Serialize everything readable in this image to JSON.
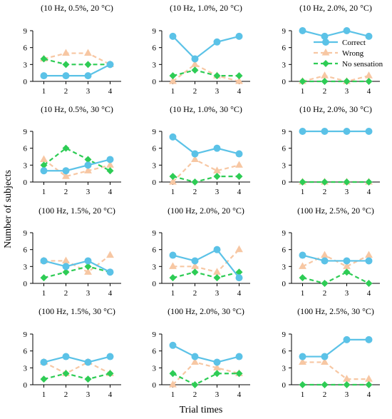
{
  "figure": {
    "ylabel": "Number of subjects",
    "xlabel": "Trial times"
  },
  "legend": {
    "placement": "inside-top-right of third panel",
    "entries": [
      "Correct",
      "Wrong",
      "No sensation"
    ]
  },
  "series_style": {
    "Correct": {
      "color": "#5bc2e7",
      "marker": "circle",
      "dash": "solid"
    },
    "Wrong": {
      "color": "#f7c7a3",
      "marker": "triangle",
      "dash": "dashed"
    },
    "No sensation": {
      "color": "#2ecc55",
      "marker": "diamond",
      "dash": "dashed"
    }
  },
  "chart_data": [
    {
      "type": "line",
      "title": "(10 Hz, 0.5%, 20  °C)",
      "x": [
        1,
        2,
        3,
        4
      ],
      "ylim": [
        0,
        9
      ],
      "yticks": [
        0,
        3,
        6,
        9
      ],
      "series": [
        {
          "name": "Correct",
          "values": [
            1,
            1,
            1,
            3
          ]
        },
        {
          "name": "Wrong",
          "values": [
            4,
            5,
            5,
            3
          ]
        },
        {
          "name": "No sensation",
          "values": [
            4,
            3,
            3,
            3
          ]
        }
      ]
    },
    {
      "type": "line",
      "title": "(10 Hz, 1.0%, 20  °C)",
      "x": [
        1,
        2,
        3,
        4
      ],
      "ylim": [
        0,
        9
      ],
      "yticks": [
        0,
        3,
        6,
        9
      ],
      "series": [
        {
          "name": "Correct",
          "values": [
            8,
            4,
            7,
            8
          ]
        },
        {
          "name": "Wrong",
          "values": [
            0,
            3,
            1,
            0
          ]
        },
        {
          "name": "No sensation",
          "values": [
            1,
            2,
            1,
            1
          ]
        }
      ]
    },
    {
      "type": "line",
      "title": "(10 Hz, 2.0%, 20  °C)",
      "x": [
        1,
        2,
        3,
        4
      ],
      "ylim": [
        0,
        9
      ],
      "yticks": [
        0,
        3,
        6,
        9
      ],
      "series": [
        {
          "name": "Correct",
          "values": [
            9,
            8,
            9,
            8
          ]
        },
        {
          "name": "Wrong",
          "values": [
            0,
            1,
            0,
            1
          ]
        },
        {
          "name": "No sensation",
          "values": [
            0,
            0,
            0,
            0
          ]
        }
      ]
    },
    {
      "type": "line",
      "title": "(10 Hz, 0.5%, 30  °C)",
      "x": [
        1,
        2,
        3,
        4
      ],
      "ylim": [
        0,
        9
      ],
      "yticks": [
        0,
        3,
        6,
        9
      ],
      "series": [
        {
          "name": "Correct",
          "values": [
            2,
            2,
            3,
            4
          ]
        },
        {
          "name": "Wrong",
          "values": [
            4,
            1,
            2,
            3
          ]
        },
        {
          "name": "No sensation",
          "values": [
            3,
            6,
            4,
            2
          ]
        }
      ]
    },
    {
      "type": "line",
      "title": "(10 Hz, 1.0%, 30  °C)",
      "x": [
        1,
        2,
        3,
        4
      ],
      "ylim": [
        0,
        9
      ],
      "yticks": [
        0,
        3,
        6,
        9
      ],
      "series": [
        {
          "name": "Correct",
          "values": [
            8,
            5,
            6,
            5
          ]
        },
        {
          "name": "Wrong",
          "values": [
            0,
            4,
            2,
            3
          ]
        },
        {
          "name": "No sensation",
          "values": [
            1,
            0,
            1,
            1
          ]
        }
      ]
    },
    {
      "type": "line",
      "title": "(10 Hz, 2.0%, 30  °C)",
      "x": [
        1,
        2,
        3,
        4
      ],
      "ylim": [
        0,
        9
      ],
      "yticks": [
        0,
        3,
        6,
        9
      ],
      "series": [
        {
          "name": "Correct",
          "values": [
            9,
            9,
            9,
            9
          ]
        },
        {
          "name": "Wrong",
          "values": [
            0,
            0,
            0,
            0
          ]
        },
        {
          "name": "No sensation",
          "values": [
            0,
            0,
            0,
            0
          ]
        }
      ]
    },
    {
      "type": "line",
      "title": "(100 Hz, 1.5%, 20  °C)",
      "x": [
        1,
        2,
        3,
        4
      ],
      "ylim": [
        0,
        9
      ],
      "yticks": [
        0,
        3,
        6,
        9
      ],
      "series": [
        {
          "name": "Correct",
          "values": [
            4,
            3,
            4,
            2
          ]
        },
        {
          "name": "Wrong",
          "values": [
            4,
            4,
            2,
            5
          ]
        },
        {
          "name": "No sensation",
          "values": [
            1,
            2,
            3,
            2
          ]
        }
      ]
    },
    {
      "type": "line",
      "title": "(100 Hz, 2.0%, 20  °C)",
      "x": [
        1,
        2,
        3,
        4
      ],
      "ylim": [
        0,
        9
      ],
      "yticks": [
        0,
        3,
        6,
        9
      ],
      "series": [
        {
          "name": "Correct",
          "values": [
            5,
            4,
            6,
            1
          ]
        },
        {
          "name": "Wrong",
          "values": [
            3,
            3,
            2,
            6
          ]
        },
        {
          "name": "No sensation",
          "values": [
            1,
            2,
            1,
            2
          ]
        }
      ]
    },
    {
      "type": "line",
      "title": "(100 Hz, 2.5%, 20  °C)",
      "x": [
        1,
        2,
        3,
        4
      ],
      "ylim": [
        0,
        9
      ],
      "yticks": [
        0,
        3,
        6,
        9
      ],
      "series": [
        {
          "name": "Correct",
          "values": [
            5,
            4,
            4,
            4
          ]
        },
        {
          "name": "Wrong",
          "values": [
            3,
            5,
            3,
            5
          ]
        },
        {
          "name": "No sensation",
          "values": [
            1,
            0,
            2,
            0
          ]
        }
      ]
    },
    {
      "type": "line",
      "title": "(100 Hz, 1.5%, 30  °C)",
      "x": [
        1,
        2,
        3,
        4
      ],
      "ylim": [
        0,
        9
      ],
      "yticks": [
        0,
        3,
        6,
        9
      ],
      "series": [
        {
          "name": "Correct",
          "values": [
            4,
            5,
            4,
            5
          ]
        },
        {
          "name": "Wrong",
          "values": [
            4,
            2,
            4,
            2
          ]
        },
        {
          "name": "No sensation",
          "values": [
            1,
            2,
            1,
            2
          ]
        }
      ]
    },
    {
      "type": "line",
      "title": "(100 Hz, 2.0%, 30  °C)",
      "x": [
        1,
        2,
        3,
        4
      ],
      "ylim": [
        0,
        9
      ],
      "yticks": [
        0,
        3,
        6,
        9
      ],
      "series": [
        {
          "name": "Correct",
          "values": [
            7,
            5,
            4,
            5
          ]
        },
        {
          "name": "Wrong",
          "values": [
            0,
            4,
            3,
            2
          ]
        },
        {
          "name": "No sensation",
          "values": [
            2,
            0,
            2,
            2
          ]
        }
      ]
    },
    {
      "type": "line",
      "title": "(100 Hz, 2.5%, 30  °C)",
      "x": [
        1,
        2,
        3,
        4
      ],
      "ylim": [
        0,
        9
      ],
      "yticks": [
        0,
        3,
        6,
        9
      ],
      "series": [
        {
          "name": "Correct",
          "values": [
            5,
            5,
            8,
            8
          ]
        },
        {
          "name": "Wrong",
          "values": [
            4,
            4,
            1,
            1
          ]
        },
        {
          "name": "No sensation",
          "values": [
            0,
            0,
            0,
            0
          ]
        }
      ]
    }
  ]
}
